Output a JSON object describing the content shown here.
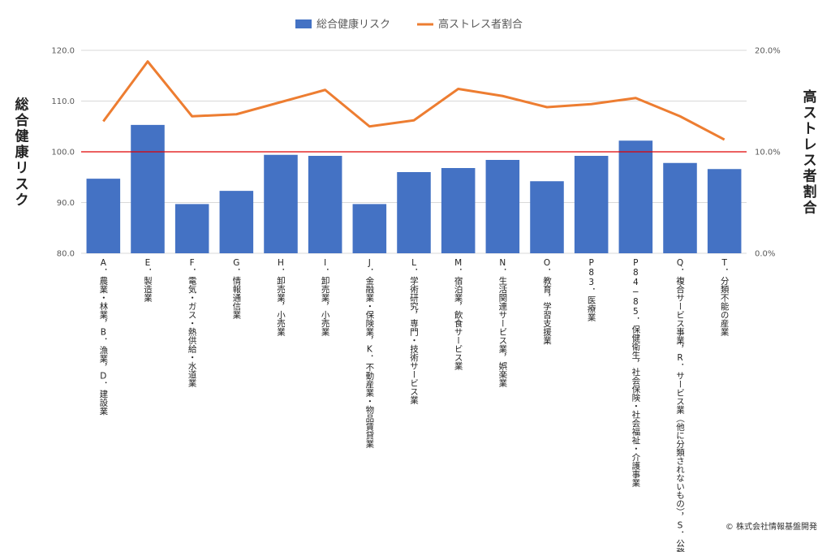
{
  "chart_data": {
    "type": "bar",
    "title": "",
    "legend": {
      "position": "top",
      "entries": [
        "総合健康リスク",
        "高ストレス者割合"
      ]
    },
    "ylabel_left": "総合健康リスク",
    "ylabel_right": "高ストレス者割合",
    "ylim_left": [
      80,
      120
    ],
    "ylim_right": [
      0,
      20
    ],
    "yticks_left": [
      "80.0",
      "90.0",
      "100.0",
      "110.0",
      "120.0"
    ],
    "yticks_right": [
      "0.0%",
      "10.0%",
      "20.0%"
    ],
    "reference_line": {
      "value": 100,
      "color": "#e00000"
    },
    "categories": [
      "A．農業・林業，B．漁業，D．建設業",
      "E．製造業",
      "F．電気・ガス・熱供給・水道業",
      "G．情報通信業",
      "H．卸売業，小売業",
      "I．卸売業，小売業",
      "J．金融業・保険業，K．不動産業・物品賃貸業",
      "L．学術研究，専門・技術サービス業",
      "M．宿泊業，飲食サービス業",
      "N．生活関連サービス業，娯楽業",
      "O．教育，学習支援業",
      "P83．医療業",
      "P84−85．保健衛生，社会保険・社会福祉・介護事業",
      "Q．複合サービス事業，R．サービス業（他に分類されないもの），S．公務",
      "T．分類不能の産業"
    ],
    "series": [
      {
        "name": "総合健康リスク",
        "type": "bar",
        "axis": "left",
        "color": "#4472c4",
        "values": [
          94.7,
          105.3,
          89.7,
          92.3,
          99.4,
          99.2,
          89.7,
          96.0,
          96.8,
          98.4,
          94.2,
          99.2,
          102.2,
          97.8,
          96.6
        ]
      },
      {
        "name": "高ストレス者割合",
        "type": "line",
        "axis": "right",
        "color": "#ed7d31",
        "unit": "%",
        "values": [
          13.0,
          18.9,
          13.5,
          13.7,
          14.9,
          16.1,
          12.5,
          13.1,
          16.2,
          15.5,
          14.4,
          14.7,
          15.3,
          13.5,
          11.2
        ]
      }
    ],
    "grid": "horizontal"
  },
  "credit": "© 株式会社情報基盤開発"
}
